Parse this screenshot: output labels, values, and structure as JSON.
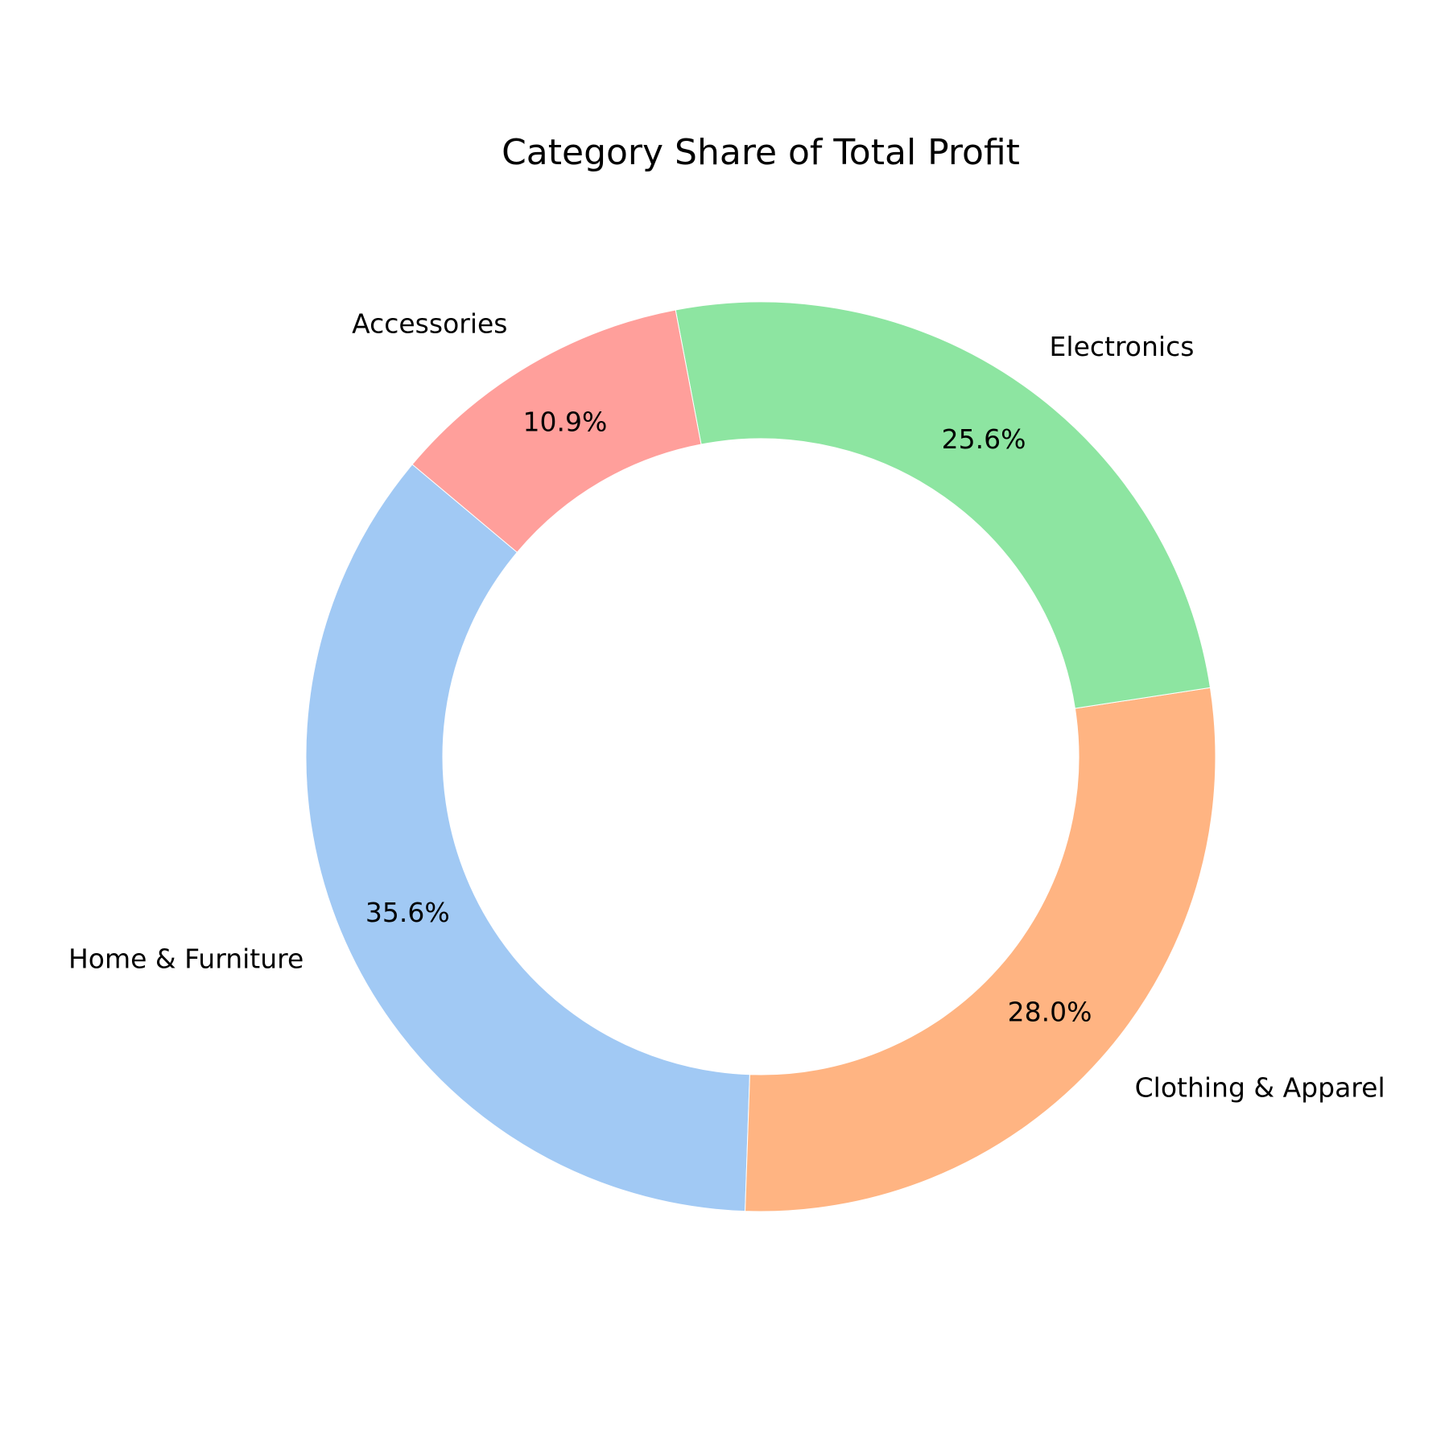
{
  "chart_data": {
    "type": "pie",
    "title": "Category Share of Total Profit",
    "donut": true,
    "start_angle_deg": 140,
    "direction": "counterclockwise",
    "categories": [
      "Home & Furniture",
      "Clothing & Apparel",
      "Electronics",
      "Accessories"
    ],
    "values": [
      35.6,
      28.0,
      25.6,
      10.9
    ],
    "value_labels": [
      "35.6%",
      "28.0%",
      "25.6%",
      "10.9%"
    ],
    "colors": [
      "#a1c9f4",
      "#ffb482",
      "#8de5a1",
      "#ff9f9b"
    ],
    "legend": "none"
  }
}
